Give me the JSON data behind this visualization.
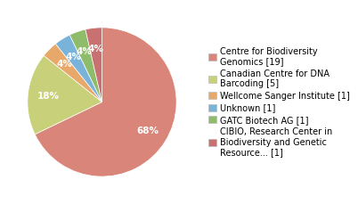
{
  "labels": [
    "Centre for Biodiversity\nGenomics [19]",
    "Canadian Centre for DNA\nBarcoding [5]",
    "Wellcome Sanger Institute [1]",
    "Unknown [1]",
    "GATC Biotech AG [1]",
    "CIBIO, Research Center in\nBiodiversity and Genetic\nResource... [1]"
  ],
  "values": [
    19,
    5,
    1,
    1,
    1,
    1
  ],
  "colors": [
    "#d9857a",
    "#c8d17a",
    "#e8a86a",
    "#7ab3d9",
    "#8fbc6a",
    "#c97070"
  ],
  "background_color": "#ffffff",
  "fontsize": 7.0,
  "pct_fontsize": 7.5,
  "startangle": 90,
  "pctdistance": 0.72
}
